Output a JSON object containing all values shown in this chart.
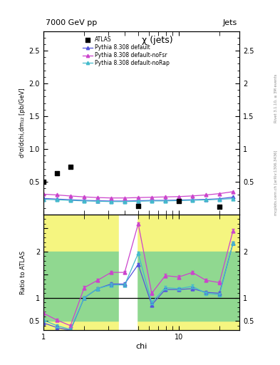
{
  "title_main": "7000 GeV pp",
  "title_right": "Jets",
  "plot_title": "χ (jets)",
  "ylabel_main": "d²σ/dchi,dm₁₂ [pb/GeV]",
  "ylabel_ratio": "Ratio to ATLAS",
  "xlabel": "chi",
  "right_label_top": "Rivet 3.1.10, ≥ 3M events",
  "right_label_bot": "mcplots.cern.ch [arXiv:1306.3436]",
  "chi_x": [
    1.0,
    1.26,
    1.585,
    2.0,
    2.512,
    3.162,
    3.981,
    5.012,
    6.31,
    7.943,
    10.0,
    12.59,
    15.85,
    19.95,
    25.12
  ],
  "atlas_y": [
    0.5,
    0.63,
    0.73,
    null,
    null,
    null,
    null,
    0.13,
    null,
    null,
    0.21,
    null,
    null,
    0.12,
    null
  ],
  "pythia_default_y": [
    0.245,
    0.235,
    0.225,
    0.215,
    0.21,
    0.205,
    0.205,
    0.21,
    0.215,
    0.215,
    0.22,
    0.225,
    0.23,
    0.24,
    0.265
  ],
  "pythia_noFsr_y": [
    0.31,
    0.298,
    0.282,
    0.268,
    0.258,
    0.252,
    0.252,
    0.258,
    0.263,
    0.268,
    0.273,
    0.283,
    0.298,
    0.318,
    0.348
  ],
  "pythia_noRap_y": [
    0.232,
    0.225,
    0.215,
    0.207,
    0.202,
    0.197,
    0.197,
    0.202,
    0.207,
    0.207,
    0.212,
    0.217,
    0.222,
    0.232,
    0.242
  ],
  "ratio_default": [
    0.46,
    0.36,
    0.3,
    1.0,
    1.2,
    1.3,
    1.3,
    1.72,
    0.85,
    1.18,
    1.18,
    1.2,
    1.12,
    1.1,
    2.18
  ],
  "ratio_noFsr": [
    0.67,
    0.52,
    0.4,
    1.22,
    1.38,
    1.55,
    1.55,
    2.6,
    1.1,
    1.48,
    1.45,
    1.55,
    1.38,
    1.33,
    2.45
  ],
  "ratio_noRap": [
    0.52,
    0.4,
    0.32,
    1.0,
    1.2,
    1.28,
    1.28,
    1.96,
    0.9,
    1.22,
    1.2,
    1.25,
    1.1,
    1.07,
    2.18
  ],
  "color_default": "#5555dd",
  "color_noFsr": "#cc44cc",
  "color_noRap": "#44bbcc",
  "color_atlas": "#000000",
  "yellow_color": "#f5f580",
  "green_color": "#90d890",
  "ylim_main": [
    0.0,
    2.8
  ],
  "ylim_ratio": [
    0.3,
    2.8
  ],
  "xlim": [
    1.0,
    28.0
  ]
}
